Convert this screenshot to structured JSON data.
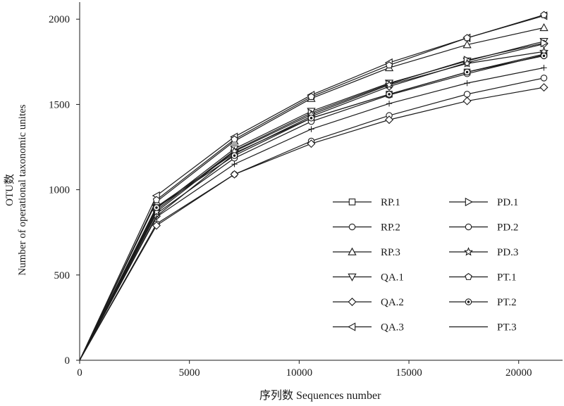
{
  "chart_data": {
    "type": "line",
    "title": "",
    "xlabel": "序列数 Sequences number",
    "ylabel_line1": "OTU数",
    "ylabel_line2": "Number of operational taxonomic unites",
    "xlim": [
      0,
      22000
    ],
    "ylim": [
      0,
      2100
    ],
    "xticks": [
      0,
      5000,
      10000,
      15000,
      20000
    ],
    "yticks": [
      0,
      500,
      1000,
      1500,
      2000
    ],
    "grid": false,
    "legend_position": "bottom-right",
    "x": [
      0,
      3500,
      7050,
      10550,
      14100,
      17650,
      21150
    ],
    "series": [
      {
        "name": "RP.1",
        "marker": "square",
        "values": [
          0,
          900,
          1215,
          1420,
          1560,
          1690,
          1795
        ]
      },
      {
        "name": "RP.2",
        "marker": "circle",
        "values": [
          0,
          860,
          1185,
          1400,
          1555,
          1680,
          1790
        ]
      },
      {
        "name": "RP.3",
        "marker": "triangle-up",
        "values": [
          0,
          930,
          1285,
          1535,
          1715,
          1850,
          1950
        ]
      },
      {
        "name": "QA.1",
        "marker": "triangle-down",
        "values": [
          0,
          890,
          1240,
          1460,
          1625,
          1755,
          1870
        ]
      },
      {
        "name": "QA.2",
        "marker": "diamond",
        "values": [
          0,
          845,
          1210,
          1430,
          1605,
          1745,
          1855
        ]
      },
      {
        "name": "QA.3",
        "marker": "triangle-left",
        "values": [
          0,
          965,
          1310,
          1555,
          1745,
          1890,
          2020
        ]
      },
      {
        "name": "PD.1",
        "marker": "triangle-right",
        "values": [
          0,
          880,
          1230,
          1450,
          1620,
          1760,
          1860
        ]
      },
      {
        "name": "PD.2",
        "marker": "circle",
        "values": [
          0,
          800,
          1090,
          1285,
          1435,
          1560,
          1655
        ]
      },
      {
        "name": "PD.3",
        "marker": "star",
        "values": [
          0,
          870,
          1225,
          1440,
          1615,
          1740,
          1810
        ]
      },
      {
        "name": "PT.1",
        "marker": "pentagon",
        "values": [
          0,
          940,
          1295,
          1545,
          1730,
          1890,
          2025
        ]
      },
      {
        "name": "PT.2",
        "marker": "dotted-circle",
        "values": [
          0,
          895,
          1200,
          1420,
          1560,
          1690,
          1785
        ]
      },
      {
        "name": "PT.3",
        "marker": "none",
        "values": [
          0,
          840,
          1150,
          1355,
          1505,
          1625,
          1715
        ]
      }
    ],
    "extra_lower_series": {
      "marker": "diamond",
      "values": [
        0,
        790,
        1090,
        1270,
        1410,
        1520,
        1600
      ]
    },
    "colors": {
      "line": "#1a1a1a",
      "marker_fill": "#ffffff",
      "axis": "#1a1a1a"
    }
  }
}
